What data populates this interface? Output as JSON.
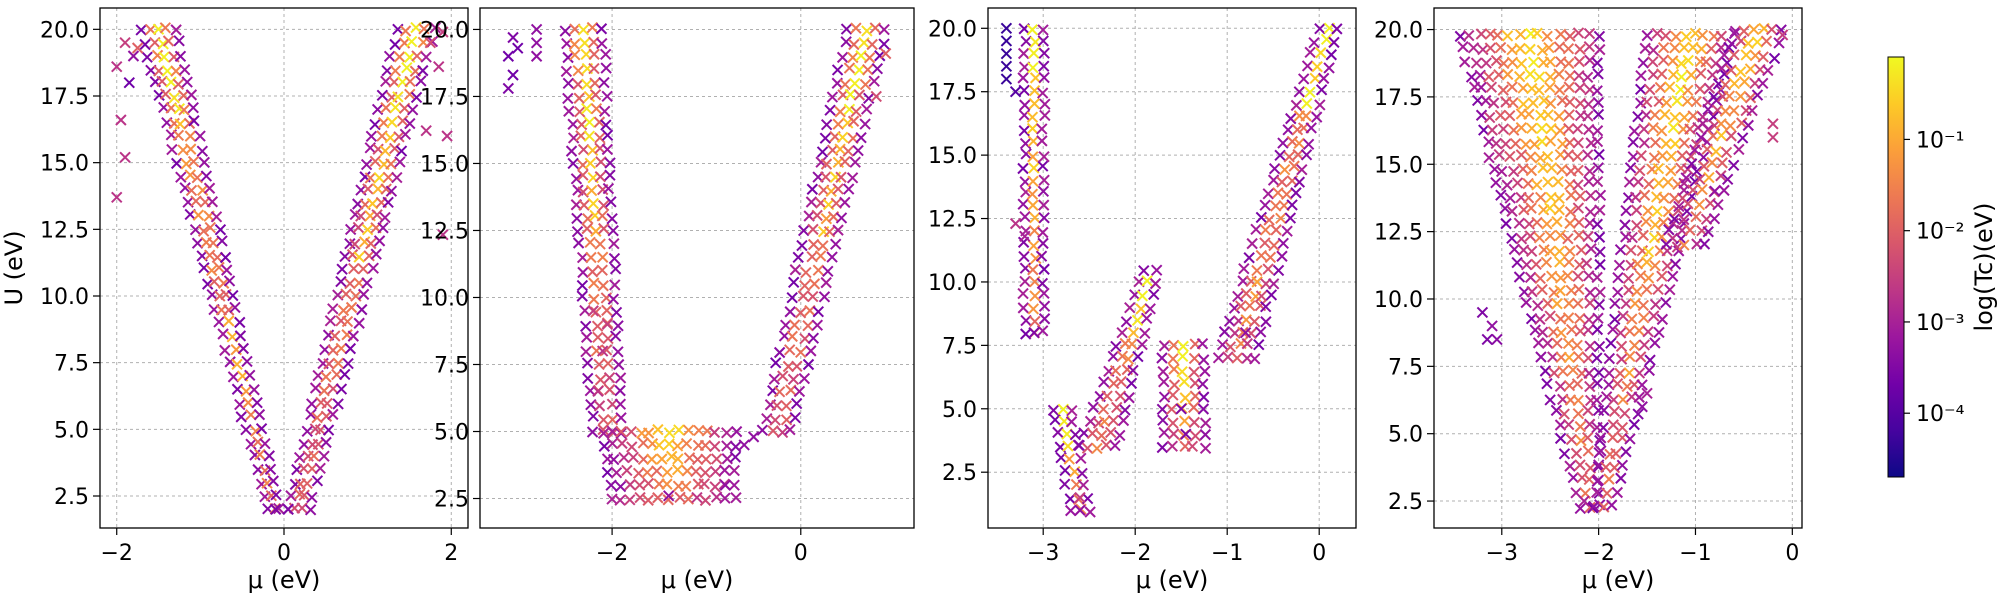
{
  "figure": {
    "ylabel": "U (eV)",
    "xlabel": "μ (eV)",
    "colorbar": {
      "label": "log(Tc)(eV)",
      "scale": "log",
      "range": [
        2e-05,
        0.8
      ],
      "ticks": [
        {
          "value": 0.0001,
          "label": "10⁻⁴"
        },
        {
          "value": 0.001,
          "label": "10⁻³"
        },
        {
          "value": 0.01,
          "label": "10⁻²"
        },
        {
          "value": 0.1,
          "label": "10⁻¹"
        }
      ],
      "colormap": "plasma",
      "stops": [
        "#0d0887",
        "#46039f",
        "#7201a8",
        "#9c179e",
        "#bd3786",
        "#d8576b",
        "#ed7953",
        "#fb9f3a",
        "#fdca26",
        "#f0f921"
      ]
    },
    "marker": "x",
    "grid": true
  },
  "chart_data": [
    {
      "type": "scatter",
      "xlabel": "μ (eV)",
      "ylabel": "U (eV)",
      "xlim": [
        -2.2,
        2.2
      ],
      "ylim": [
        1.3,
        20.8
      ],
      "xticks": [
        {
          "value": -2,
          "label": "−2"
        },
        {
          "value": 0,
          "label": "0"
        },
        {
          "value": 2,
          "label": "2"
        }
      ],
      "yticks": [
        {
          "value": 2.5,
          "label": "2.5"
        },
        {
          "value": 5,
          "label": "5.0"
        },
        {
          "value": 7.5,
          "label": "7.5"
        },
        {
          "value": 10,
          "label": "10.0"
        },
        {
          "value": 12.5,
          "label": "12.5"
        },
        {
          "value": 15,
          "label": "15.0"
        },
        {
          "value": 17.5,
          "label": "17.5"
        },
        {
          "value": 20,
          "label": "20.0"
        }
      ],
      "bands": [
        {
          "y": [
            2,
            20
          ],
          "x_left": [
            -0.2,
            -1.7
          ],
          "x_right": [
            -0.05,
            -1.3
          ]
        },
        {
          "y": [
            2,
            20
          ],
          "x_left": [
            0.05,
            1.35
          ],
          "x_right": [
            0.3,
            1.8
          ]
        }
      ],
      "points": [
        {
          "x": -2.0,
          "y": 13.7,
          "tc": 0.002
        },
        {
          "x": -1.95,
          "y": 16.6,
          "tc": 0.002
        },
        {
          "x": -1.9,
          "y": 15.2,
          "tc": 0.002
        },
        {
          "x": -1.85,
          "y": 18.0,
          "tc": 0.0002
        },
        {
          "x": -1.8,
          "y": 19.0,
          "tc": 0.0005
        },
        {
          "x": -2.0,
          "y": 18.6,
          "tc": 0.002
        },
        {
          "x": -1.9,
          "y": 19.5,
          "tc": 0.003
        },
        {
          "x": -1.75,
          "y": 19.3,
          "tc": 0.01
        },
        {
          "x": 1.75,
          "y": 19.5,
          "tc": 0.005
        },
        {
          "x": 1.85,
          "y": 18.6,
          "tc": 0.002
        },
        {
          "x": 1.95,
          "y": 16.0,
          "tc": 0.002
        },
        {
          "x": 1.9,
          "y": 12.3,
          "tc": 0.002
        },
        {
          "x": 1.9,
          "y": 19.9,
          "tc": 0.003
        },
        {
          "x": 1.7,
          "y": 16.2,
          "tc": 0.002
        },
        {
          "x": -0.1,
          "y": 2.0,
          "tc": 0.0003
        },
        {
          "x": 0.05,
          "y": 2.0,
          "tc": 0.0003
        }
      ]
    },
    {
      "type": "scatter",
      "xlabel": "μ (eV)",
      "ylabel": "",
      "xlim": [
        -3.4,
        1.2
      ],
      "ylim": [
        1.4,
        20.8
      ],
      "xticks": [
        {
          "value": -2,
          "label": "−2"
        },
        {
          "value": 0,
          "label": "0"
        }
      ],
      "yticks": [
        {
          "value": 2.5,
          "label": "2.5"
        },
        {
          "value": 5,
          "label": "5.0"
        },
        {
          "value": 7.5,
          "label": "7.5"
        },
        {
          "value": 10,
          "label": "10.0"
        },
        {
          "value": 12.5,
          "label": "12.5"
        },
        {
          "value": 15,
          "label": "15.0"
        },
        {
          "value": 17.5,
          "label": "17.5"
        },
        {
          "value": 20,
          "label": "20.0"
        }
      ],
      "bands": [
        {
          "y": [
            5,
            20
          ],
          "x_left": [
            -2.2,
            -2.5
          ],
          "x_right": [
            -1.9,
            -2.1
          ]
        },
        {
          "y": [
            2.5,
            5
          ],
          "x_left": [
            -2.0,
            -2.1
          ],
          "x_right": [
            -0.7,
            -0.7
          ]
        },
        {
          "y": [
            5,
            20
          ],
          "x_left": [
            -0.4,
            0.5
          ],
          "x_right": [
            -0.1,
            0.9
          ]
        }
      ],
      "points": [
        {
          "x": -3.1,
          "y": 19.0,
          "tc": 0.0002
        },
        {
          "x": -3.05,
          "y": 18.3,
          "tc": 0.0002
        },
        {
          "x": -3.0,
          "y": 19.3,
          "tc": 0.0002
        },
        {
          "x": -3.1,
          "y": 17.8,
          "tc": 0.0003
        },
        {
          "x": -2.8,
          "y": 20.0,
          "tc": 0.0005
        },
        {
          "x": -2.8,
          "y": 19.5,
          "tc": 0.0005
        },
        {
          "x": -2.8,
          "y": 19.0,
          "tc": 0.0005
        },
        {
          "x": -3.05,
          "y": 19.7,
          "tc": 0.0003
        },
        {
          "x": -2.2,
          "y": 9.5,
          "tc": 0.003
        },
        {
          "x": -2.1,
          "y": 8.0,
          "tc": 0.002
        },
        {
          "x": -2.15,
          "y": 6.5,
          "tc": 0.002
        },
        {
          "x": -2.05,
          "y": 9.0,
          "tc": 0.003
        },
        {
          "x": -0.6,
          "y": 4.5,
          "tc": 0.0005
        },
        {
          "x": -0.5,
          "y": 4.8,
          "tc": 0.0005
        },
        {
          "x": -0.8,
          "y": 3.0,
          "tc": 0.0005
        },
        {
          "x": -1.4,
          "y": 2.6,
          "tc": 0.0005
        },
        {
          "x": 0.9,
          "y": 19.1,
          "tc": 0.01
        },
        {
          "x": 0.8,
          "y": 17.5,
          "tc": 0.005
        }
      ]
    },
    {
      "type": "scatter",
      "xlabel": "μ (eV)",
      "ylabel": "",
      "xlim": [
        -3.6,
        0.4
      ],
      "ylim": [
        0.3,
        20.8
      ],
      "xticks": [
        {
          "value": -3,
          "label": "−3"
        },
        {
          "value": -2,
          "label": "−2"
        },
        {
          "value": -1,
          "label": "−1"
        },
        {
          "value": 0,
          "label": "0"
        }
      ],
      "yticks": [
        {
          "value": 2.5,
          "label": "2.5"
        },
        {
          "value": 5,
          "label": "5.0"
        },
        {
          "value": 7.5,
          "label": "7.5"
        },
        {
          "value": 10,
          "label": "10.0"
        },
        {
          "value": 12.5,
          "label": "12.5"
        },
        {
          "value": 15,
          "label": "15.0"
        },
        {
          "value": 17.5,
          "label": "17.5"
        },
        {
          "value": 20,
          "label": "20.0"
        }
      ],
      "bands": [
        {
          "y": [
            8,
            20
          ],
          "x_left": [
            -3.2,
            -3.2
          ],
          "x_right": [
            -3.0,
            -3.0
          ]
        },
        {
          "y": [
            1,
            5
          ],
          "x_left": [
            -2.7,
            -2.9
          ],
          "x_right": [
            -2.5,
            -2.7
          ]
        },
        {
          "y": [
            3.5,
            10.5
          ],
          "x_left": [
            -2.6,
            -1.9
          ],
          "x_right": [
            -2.2,
            -1.75
          ]
        },
        {
          "y": [
            3.5,
            7.5
          ],
          "x_left": [
            -1.7,
            -1.7
          ],
          "x_right": [
            -1.25,
            -1.25
          ]
        },
        {
          "y": [
            7,
            20
          ],
          "x_left": [
            -1.1,
            0.0
          ],
          "x_right": [
            -0.7,
            0.2
          ]
        }
      ],
      "points": [
        {
          "x": -3.4,
          "y": 20.0,
          "tc": 5e-05
        },
        {
          "x": -3.4,
          "y": 19.5,
          "tc": 5e-05
        },
        {
          "x": -3.4,
          "y": 19.0,
          "tc": 5e-05
        },
        {
          "x": -3.4,
          "y": 18.5,
          "tc": 5e-05
        },
        {
          "x": -3.4,
          "y": 18.0,
          "tc": 5e-05
        },
        {
          "x": -3.3,
          "y": 17.5,
          "tc": 0.0001
        },
        {
          "x": -3.3,
          "y": 12.3,
          "tc": 0.002
        },
        {
          "x": -3.2,
          "y": 11.8,
          "tc": 0.001
        },
        {
          "x": -2.6,
          "y": 1.0,
          "tc": 0.0005
        },
        {
          "x": -2.6,
          "y": 1.5,
          "tc": 0.003
        },
        {
          "x": -1.5,
          "y": 5.0,
          "tc": 0.0003
        },
        {
          "x": -1.45,
          "y": 4.0,
          "tc": 0.0003
        },
        {
          "x": -3.1,
          "y": 8.0,
          "tc": 0.0003
        },
        {
          "x": -0.8,
          "y": 8.0,
          "tc": 0.0005
        }
      ]
    },
    {
      "type": "scatter",
      "xlabel": "μ (eV)",
      "ylabel": "",
      "xlim": [
        -3.7,
        0.1
      ],
      "ylim": [
        1.5,
        20.8
      ],
      "xticks": [
        {
          "value": -3,
          "label": "−3"
        },
        {
          "value": -2,
          "label": "−2"
        },
        {
          "value": -1,
          "label": "−1"
        },
        {
          "value": 0,
          "label": "0"
        }
      ],
      "yticks": [
        {
          "value": 2.5,
          "label": "2.5"
        },
        {
          "value": 5,
          "label": "5.0"
        },
        {
          "value": 7.5,
          "label": "7.5"
        },
        {
          "value": 10,
          "label": "10.0"
        },
        {
          "value": 12.5,
          "label": "12.5"
        },
        {
          "value": 15,
          "label": "15.0"
        },
        {
          "value": 17.5,
          "label": "17.5"
        },
        {
          "value": 20,
          "label": "20.0"
        }
      ],
      "bands": [
        {
          "y": [
            2.3,
            20
          ],
          "x_left": [
            -2.2,
            -3.45
          ],
          "x_right": [
            -2.0,
            -2.0
          ]
        },
        {
          "y": [
            2.3,
            20
          ],
          "x_left": [
            -2.05,
            -1.5
          ],
          "x_right": [
            -1.85,
            -0.6
          ]
        },
        {
          "y": [
            12,
            20
          ],
          "x_left": [
            -1.3,
            -0.6
          ],
          "x_right": [
            -0.9,
            -0.1
          ]
        }
      ],
      "points": [
        {
          "x": -3.2,
          "y": 9.5,
          "tc": 0.0003
        },
        {
          "x": -3.1,
          "y": 9.0,
          "tc": 0.0005
        },
        {
          "x": -3.15,
          "y": 8.5,
          "tc": 0.0003
        },
        {
          "x": -3.05,
          "y": 8.5,
          "tc": 0.0004
        },
        {
          "x": -1.55,
          "y": 6.0,
          "tc": 0.0005
        },
        {
          "x": -1.5,
          "y": 6.5,
          "tc": 0.001
        },
        {
          "x": -0.8,
          "y": 14.0,
          "tc": 0.0005
        },
        {
          "x": -0.2,
          "y": 16.0,
          "tc": 0.003
        },
        {
          "x": -0.2,
          "y": 16.5,
          "tc": 0.003
        },
        {
          "x": -0.1,
          "y": 19.8,
          "tc": 0.003
        },
        {
          "x": -2.05,
          "y": 2.3,
          "tc": 0.0005
        },
        {
          "x": -2.15,
          "y": 2.5,
          "tc": 0.001
        }
      ]
    }
  ]
}
